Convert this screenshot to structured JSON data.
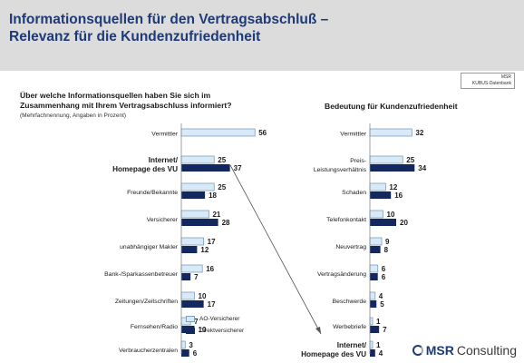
{
  "title": {
    "line1": "Informationsquellen für den Vertragsabschluß –",
    "line2": "Relevanz für die Kundenzufriedenheit"
  },
  "source": {
    "line1": "MSR",
    "line2": "KUBUS-Datenbank"
  },
  "left_question": {
    "line1": "Über welche Informationsquellen haben Sie sich im",
    "line2": "Zusammenhang mit Ihrem Vertragsabschluss informiert?",
    "note": "(Mehrfachnennung, Angaben in Prozent)"
  },
  "right_title": "Bedeutung für Kundenzufriedenheit",
  "legend": {
    "light": "AO-Versicherer",
    "dark": "Direktversicherer"
  },
  "logo": {
    "bold": "MSR",
    "rest": "Consulting"
  },
  "colors": {
    "light": "#d8e9f7",
    "light_border": "#7f9fbf",
    "dark": "#12285e",
    "header": "#dcdcdc",
    "title": "#1e3a78"
  },
  "chart_data": [
    {
      "type": "bar",
      "orientation": "horizontal",
      "title": "Über welche Informationsquellen haben Sie sich im Zusammenhang mit Ihrem Vertragsabschluss informiert?",
      "categories": [
        {
          "lines": [
            "Vermittler"
          ],
          "bold": false
        },
        {
          "lines": [
            "Internet/",
            "Homepage des VU"
          ],
          "bold": true
        },
        {
          "lines": [
            "Freunde/Bekannte"
          ],
          "bold": false
        },
        {
          "lines": [
            "Versicherer"
          ],
          "bold": false
        },
        {
          "lines": [
            "unabhängiger Makler"
          ],
          "bold": false
        },
        {
          "lines": [
            "Bank-/Sparkassenbetreuer"
          ],
          "bold": false
        },
        {
          "lines": [
            "Zeitungen/Zeitschriften"
          ],
          "bold": false
        },
        {
          "lines": [
            "Fernsehen/Radio"
          ],
          "bold": false
        },
        {
          "lines": [
            "Verbraucherzentralen"
          ],
          "bold": false
        }
      ],
      "series": [
        {
          "name": "AO-Versicherer",
          "values": [
            56,
            25,
            25,
            21,
            17,
            16,
            10,
            7,
            3
          ]
        },
        {
          "name": "Direktversicherer",
          "values": [
            null,
            37,
            18,
            28,
            12,
            7,
            17,
            10,
            6
          ]
        }
      ]
    },
    {
      "type": "bar",
      "orientation": "horizontal",
      "title": "Bedeutung für Kundenzufriedenheit",
      "categories": [
        {
          "lines": [
            "Vermittler"
          ],
          "bold": false
        },
        {
          "lines": [
            "Preis-",
            "Leistungsverhältnis"
          ],
          "bold": false
        },
        {
          "lines": [
            "Schaden"
          ],
          "bold": false
        },
        {
          "lines": [
            "Telefonkontakt"
          ],
          "bold": false
        },
        {
          "lines": [
            "Neuvertrag"
          ],
          "bold": false
        },
        {
          "lines": [
            "Vertragsänderung"
          ],
          "bold": false
        },
        {
          "lines": [
            "Beschwerde"
          ],
          "bold": false
        },
        {
          "lines": [
            "Werbebriefe"
          ],
          "bold": false
        },
        {
          "lines": [
            "Internet/",
            "Homepage des VU"
          ],
          "bold": true
        }
      ],
      "series": [
        {
          "name": "AO-Versicherer",
          "values": [
            32,
            25,
            12,
            10,
            9,
            6,
            4,
            1,
            1
          ]
        },
        {
          "name": "Direktversicherer",
          "values": [
            null,
            34,
            16,
            20,
            8,
            6,
            5,
            7,
            4
          ]
        }
      ]
    }
  ]
}
